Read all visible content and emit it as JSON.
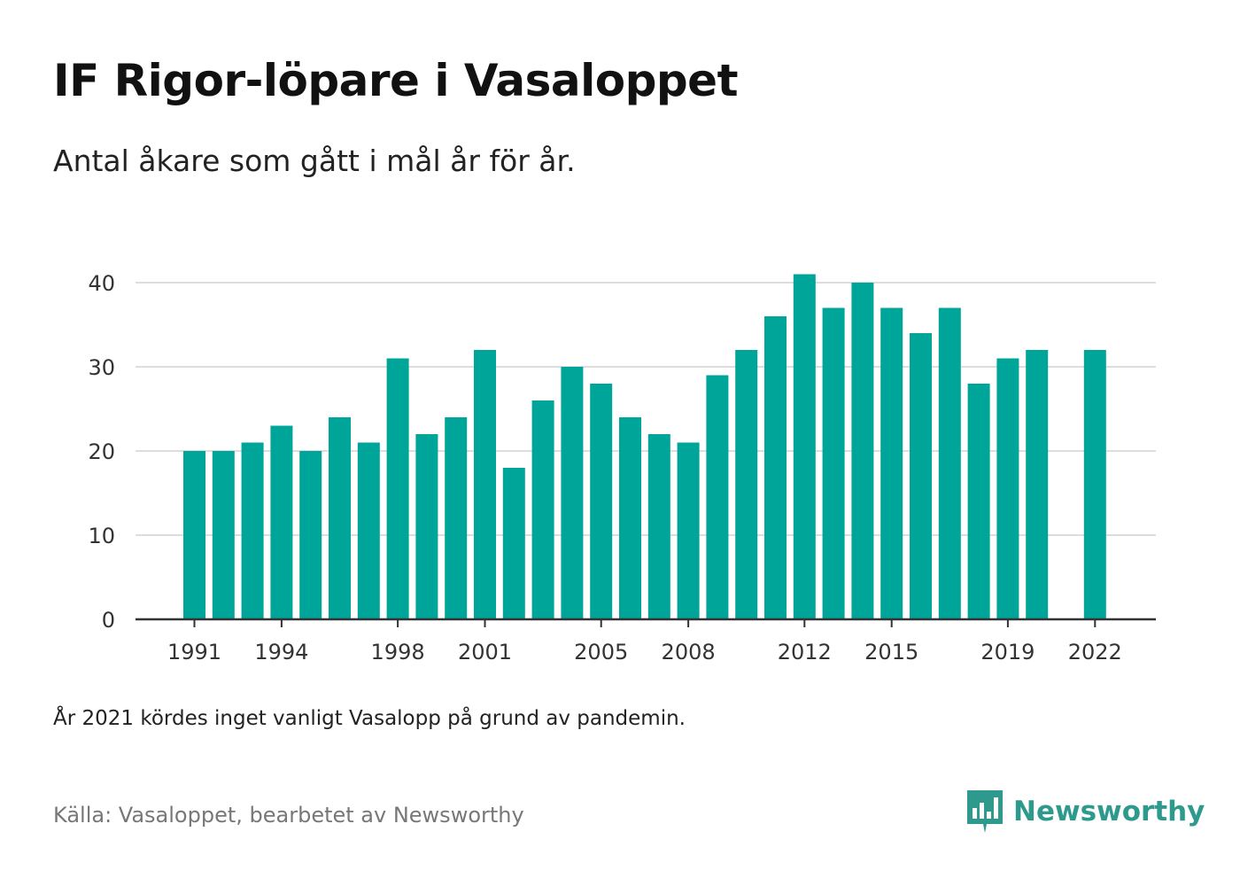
{
  "header": {
    "title": "IF Rigor-löpare i Vasaloppet",
    "subtitle": "Antal åkare som gått i mål år för år."
  },
  "footer": {
    "note": "År 2021 kördes inget vanligt Vasalopp på grund av pandemin.",
    "source": "Källa: Vasaloppet, bearbetet av Newsworthy",
    "brand": "Newsworthy",
    "brand_icon": "newsworthy-logo-icon"
  },
  "colors": {
    "bar": "#00a59a",
    "grid": "#dddddd",
    "axis": "#333333",
    "brand": "#2e9a8e"
  },
  "chart_data": {
    "type": "bar",
    "categories": [
      "1991",
      "1992",
      "1993",
      "1994",
      "1995",
      "1996",
      "1997",
      "1998",
      "1999",
      "2000",
      "2001",
      "2002",
      "2003",
      "2004",
      "2005",
      "2006",
      "2007",
      "2008",
      "2009",
      "2010",
      "2011",
      "2012",
      "2013",
      "2014",
      "2015",
      "2016",
      "2017",
      "2018",
      "2019",
      "2020",
      "2021",
      "2022"
    ],
    "values": [
      20,
      20,
      21,
      23,
      20,
      24,
      21,
      31,
      22,
      24,
      32,
      18,
      26,
      30,
      28,
      24,
      22,
      21,
      29,
      32,
      36,
      41,
      37,
      40,
      37,
      34,
      37,
      28,
      31,
      32,
      null,
      32
    ],
    "x_tick_labels": [
      "1991",
      "1994",
      "1998",
      "2001",
      "2005",
      "2008",
      "2012",
      "2015",
      "2019",
      "2022"
    ],
    "y_ticks": [
      0,
      10,
      20,
      30,
      40
    ],
    "ylim": [
      0,
      42
    ],
    "grid": true,
    "legend": "none"
  }
}
